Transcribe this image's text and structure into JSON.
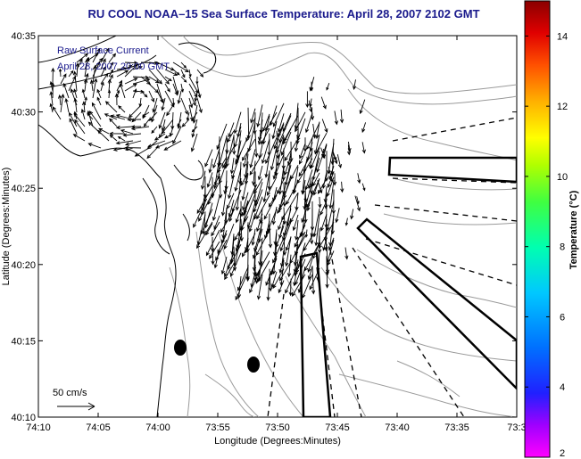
{
  "title": "RU COOL  NOAA–15  Sea Surface Temperature:  April 28, 2007 2102 GMT",
  "legend": {
    "line1": "Raw Surface Current",
    "line2": "April 28, 2007 20:00 GMT"
  },
  "scale_label": "50 cm/s",
  "axes": {
    "xlabel": "Longitude (Degrees:Minutes)",
    "ylabel": "Latitude (Degrees:Minutes)",
    "xticks": [
      "74:10",
      "74:05",
      "74:00",
      "73:55",
      "73:50",
      "73:45",
      "73:40",
      "73:35",
      "73:3"
    ],
    "yticks": [
      "40:35",
      "40:30",
      "40:25",
      "40:20",
      "40:15",
      "40:10"
    ]
  },
  "colorbar": {
    "label": "Temperature (°C)",
    "ticks": [
      "14",
      "12",
      "10",
      "8",
      "6",
      "4",
      "2"
    ],
    "range": [
      2,
      15
    ],
    "colors": [
      "#ff00ff",
      "#8000ff",
      "#0000ff",
      "#0066ff",
      "#00ccff",
      "#00ffcc",
      "#00ff66",
      "#66ff00",
      "#ccff00",
      "#ffff00",
      "#ffcc00",
      "#ff8000",
      "#ff3300",
      "#cc0000",
      "#800000"
    ]
  },
  "colors": {
    "title": "#1a1a8c",
    "coast": "#000000",
    "contour": "#999999",
    "vectors": "#000000"
  }
}
